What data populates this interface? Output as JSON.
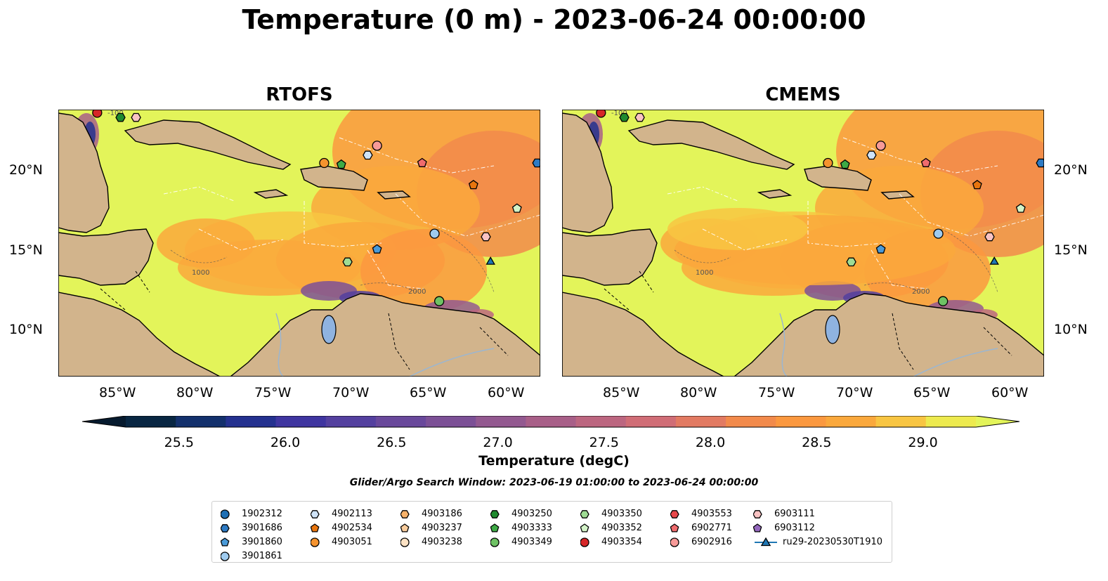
{
  "title": "Temperature (0 m) - 2023-06-24 00:00:00",
  "panels": [
    {
      "title": "RTOFS"
    },
    {
      "title": "CMEMS"
    }
  ],
  "map": {
    "lon_range": [
      -89,
      -58
    ],
    "lat_range": [
      7,
      24
    ],
    "lon_ticks": [
      "85°W",
      "80°W",
      "75°W",
      "70°W",
      "65°W",
      "60°W"
    ],
    "lat_ticks": [
      "20°N",
      "15°N",
      "10°N"
    ],
    "land_color": "#d2b48c",
    "lake_color": "#8fb3e0",
    "contour_labels": [
      "1000",
      "2000",
      "-100"
    ]
  },
  "colorbar": {
    "title": "Temperature (degC)",
    "range": [
      25.25,
      29.25
    ],
    "tick_labels": [
      "25.5",
      "26.0",
      "26.5",
      "27.0",
      "27.5",
      "28.0",
      "28.5",
      "29.0"
    ],
    "colors": [
      "#082642",
      "#13306c",
      "#24318f",
      "#3f35a0",
      "#54409f",
      "#69489b",
      "#7c5096",
      "#935990",
      "#a85f88",
      "#bc6680",
      "#d06d76",
      "#e27a62",
      "#f28a4b",
      "#fb983f",
      "#faa83c",
      "#f8c542",
      "#edea4e"
    ],
    "extend_color": "#e3f45a"
  },
  "search_window": "Glider/Argo Search Window: 2023-06-19 01:00:00 to 2023-06-24 00:00:00",
  "legend": [
    {
      "label": "1902312",
      "marker": "circle",
      "color": "#1f6fb4"
    },
    {
      "label": "3901686",
      "marker": "hexagon",
      "color": "#2e7bc4"
    },
    {
      "label": "3901860",
      "marker": "pentagon",
      "color": "#4a9ad8"
    },
    {
      "label": "3901861",
      "marker": "circle",
      "color": "#9fcbef"
    },
    {
      "label": "4902113",
      "marker": "hexagon",
      "color": "#cfe3f7"
    },
    {
      "label": "4902534",
      "marker": "pentagon",
      "color": "#e8750e"
    },
    {
      "label": "4903051",
      "marker": "circle",
      "color": "#f5932e"
    },
    {
      "label": "4903186",
      "marker": "hexagon",
      "color": "#f7b26a"
    },
    {
      "label": "4903237",
      "marker": "pentagon",
      "color": "#f9cc9c"
    },
    {
      "label": "4903238",
      "marker": "circle",
      "color": "#fce2c4"
    },
    {
      "label": "4903250",
      "marker": "hexagon",
      "color": "#1f8a2e"
    },
    {
      "label": "4903333",
      "marker": "pentagon",
      "color": "#3eaa45"
    },
    {
      "label": "4903349",
      "marker": "circle",
      "color": "#6ec264"
    },
    {
      "label": "4903350",
      "marker": "hexagon",
      "color": "#9fdc94"
    },
    {
      "label": "4903352",
      "marker": "pentagon",
      "color": "#d3f3c8"
    },
    {
      "label": "4903354",
      "marker": "circle",
      "color": "#d62728"
    },
    {
      "label": "4903553",
      "marker": "hexagon",
      "color": "#e8474a"
    },
    {
      "label": "6902771",
      "marker": "pentagon",
      "color": "#ef6b6d"
    },
    {
      "label": "6902916",
      "marker": "circle",
      "color": "#f79a98"
    },
    {
      "label": "6903111",
      "marker": "hexagon",
      "color": "#f9c3c3"
    },
    {
      "label": "6903112",
      "marker": "pentagon",
      "color": "#9467bd"
    },
    {
      "label": "ru29-20230530T1910",
      "marker": "triangle-line",
      "color": "#1f77b4"
    }
  ],
  "floats_on_map": [
    {
      "id": "4903354",
      "lon": -86.5,
      "lat": 23.8
    },
    {
      "id": "4903250",
      "lon": -85.0,
      "lat": 23.5
    },
    {
      "id": "6903111",
      "lon": -84.0,
      "lat": 23.5
    },
    {
      "id": "4903051",
      "lon": -71.9,
      "lat": 20.6
    },
    {
      "id": "4903333",
      "lon": -70.8,
      "lat": 20.5
    },
    {
      "id": "4902113",
      "lon": -69.1,
      "lat": 21.1
    },
    {
      "id": "6902916",
      "lon": -68.5,
      "lat": 21.7
    },
    {
      "id": "6902771",
      "lon": -65.6,
      "lat": 20.6
    },
    {
      "id": "4902534",
      "lon": -62.3,
      "lat": 19.2
    },
    {
      "id": "3901686",
      "lon": -58.2,
      "lat": 20.6
    },
    {
      "id": "4903352",
      "lon": -59.5,
      "lat": 17.7
    },
    {
      "id": "3901861",
      "lon": -64.8,
      "lat": 16.1
    },
    {
      "id": "6903111",
      "lon": -61.5,
      "lat": 15.9
    },
    {
      "id": "3901860",
      "lon": -68.5,
      "lat": 15.1
    },
    {
      "id": "4903350",
      "lon": -70.4,
      "lat": 14.3
    },
    {
      "id": "4903349",
      "lon": -64.5,
      "lat": 11.8
    },
    {
      "id": "ru29-20230530T1910",
      "lon": -61.2,
      "lat": 14.3
    }
  ]
}
